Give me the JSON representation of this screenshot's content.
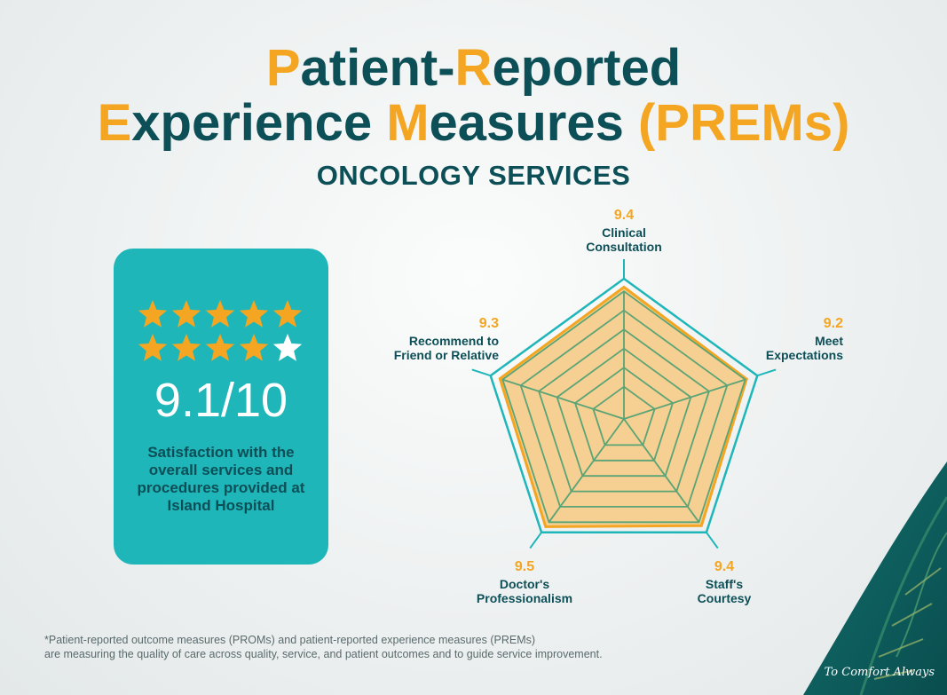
{
  "header": {
    "title_line1": [
      {
        "text": "P",
        "accent": true
      },
      {
        "text": "atient-",
        "accent": false
      },
      {
        "text": "R",
        "accent": true
      },
      {
        "text": "eported",
        "accent": false
      }
    ],
    "title_line2": [
      {
        "text": "E",
        "accent": true
      },
      {
        "text": "xperience ",
        "accent": false
      },
      {
        "text": "M",
        "accent": true
      },
      {
        "text": "easures ",
        "accent": false
      },
      {
        "text": "(PREMs)",
        "accent": true
      }
    ],
    "subtitle": "ONCOLOGY SERVICES"
  },
  "colors": {
    "primary": "#0d4f57",
    "accent": "#f4a521",
    "teal": "#1fb6b9",
    "radar_fill": "#f6cf92"
  },
  "summary_card": {
    "rating_filled": 9,
    "rating_total": 10,
    "score_text": "9.1/10",
    "description": "Satisfaction with the overall services and procedures provided at Island Hospital"
  },
  "chart_data": {
    "type": "radar",
    "title": "",
    "axes": [
      {
        "label": [
          "Clinical",
          "Consultation"
        ],
        "value": 9.4
      },
      {
        "label": [
          "Meet",
          "Expectations"
        ],
        "value": 9.2
      },
      {
        "label": [
          "Staff's",
          "Courtesy"
        ],
        "value": 9.4
      },
      {
        "label": [
          "Doctor's",
          "Professionalism"
        ],
        "value": 9.5
      },
      {
        "label": [
          "Recommend to",
          "Friend or Relative"
        ],
        "value": 9.3
      }
    ],
    "value_labels": [
      "9.4",
      "9.2",
      "9.4",
      "9.5",
      "9.3"
    ],
    "range": [
      0,
      10
    ],
    "grid_levels": 6
  },
  "footnote": {
    "line1": "*Patient-reported outcome measures (PROMs) and patient-reported experience measures (PREMs)",
    "line2": "are measuring the quality of care across quality, service, and patient outcomes and to guide service improvement."
  },
  "branding": {
    "slogan": "To Comfort Always"
  }
}
